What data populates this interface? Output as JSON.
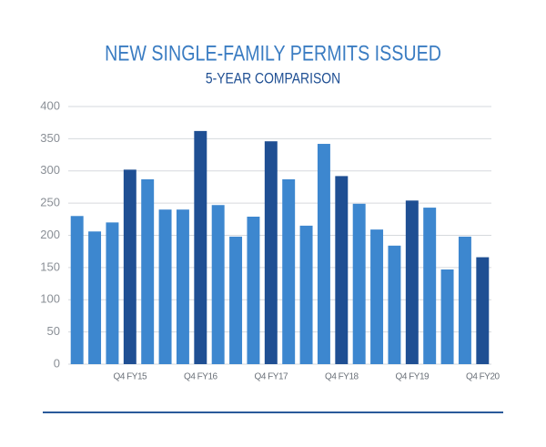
{
  "chart_data": {
    "type": "bar",
    "title": "NEW SINGLE-FAMILY PERMITS ISSUED",
    "subtitle": "5-YEAR COMPARISON",
    "categories": [
      null,
      null,
      null,
      "Q4 FY15",
      null,
      null,
      null,
      "Q4 FY16",
      null,
      null,
      null,
      "Q4 FY17",
      null,
      null,
      null,
      "Q4 FY18",
      null,
      null,
      null,
      "Q4 FY19",
      null,
      null,
      null,
      "Q4 FY20"
    ],
    "values": [
      230,
      206,
      220,
      302,
      287,
      240,
      240,
      362,
      247,
      198,
      229,
      346,
      287,
      215,
      342,
      292,
      249,
      209,
      184,
      254,
      243,
      147,
      198,
      166
    ],
    "colors": [
      "#3d87cf",
      "#3d87cf",
      "#3d87cf",
      "#1f4f93",
      "#3d87cf",
      "#3d87cf",
      "#3d87cf",
      "#1f4f93",
      "#3d87cf",
      "#3d87cf",
      "#3d87cf",
      "#1f4f93",
      "#3d87cf",
      "#3d87cf",
      "#3d87cf",
      "#1f4f93",
      "#3d87cf",
      "#3d87cf",
      "#3d87cf",
      "#1f4f93",
      "#3d87cf",
      "#3d87cf",
      "#3d87cf",
      "#1f4f93"
    ],
    "ylim": [
      0,
      400
    ],
    "yticks": [
      0,
      50,
      100,
      150,
      200,
      250,
      300,
      350,
      400
    ],
    "grid": true
  }
}
